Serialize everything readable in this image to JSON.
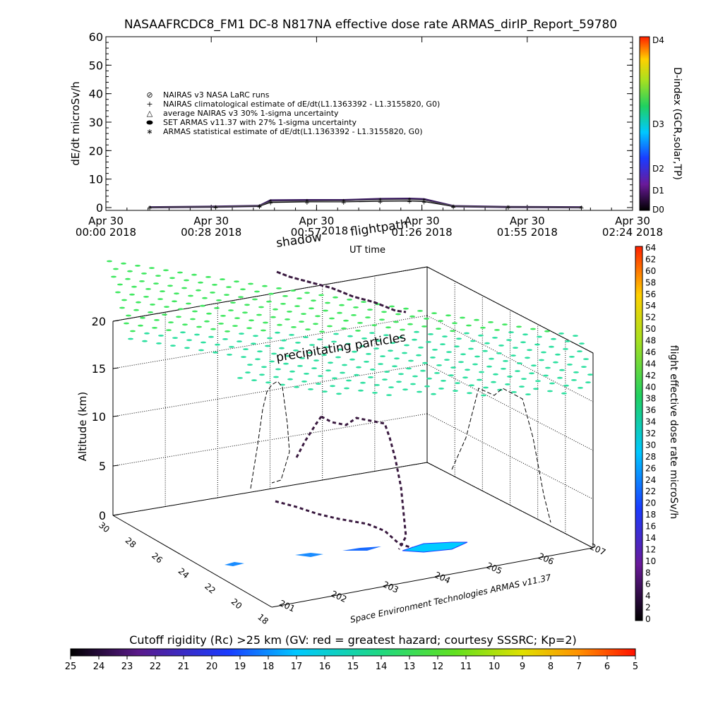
{
  "title": "NASAAFRCDC8_FM1 DC-8   N817NA effective dose rate ARMAS_dirIP_Report_59780",
  "top_chart": {
    "ylabel": "dE/dt microSv/h",
    "xlabel": "UT time",
    "yticks": [
      "0",
      "10",
      "20",
      "30",
      "40",
      "50",
      "60"
    ],
    "xticks": [
      {
        "l1": "Apr 30",
        "l2": "00:00 2018"
      },
      {
        "l1": "Apr 30",
        "l2": "00:28 2018"
      },
      {
        "l1": "Apr 30",
        "l2": "00:57 2018"
      },
      {
        "l1": "Apr 30",
        "l2": "01:26 2018"
      },
      {
        "l1": "Apr 30",
        "l2": "01:55 2018"
      },
      {
        "l1": "Apr 30",
        "l2": "02:24 2018"
      }
    ],
    "legend": [
      {
        "symbol": "⊘",
        "text": "NAIRAS v3 NASA LaRC runs"
      },
      {
        "symbol": "+",
        "text": "NAIRAS climatological estimate of dE/dt(L1.1363392 - L1.3155820, G0)"
      },
      {
        "symbol": "△",
        "text": "average NAIRAS v3 30% 1-sigma uncertainty"
      },
      {
        "symbol": "⬬",
        "text": "SET ARMAS v11.37 with 27% 1-sigma uncertainty"
      },
      {
        "symbol": "∗",
        "text": "ARMAS statistical estimate of dE/dt(L1.1363392 - L1.3155820, G0)"
      }
    ],
    "dindex_label": "D-index (GCR,solar,TP)",
    "dindex_ticks": [
      "D0",
      "D1",
      "D2",
      "D3",
      "D4"
    ]
  },
  "chart_data": [
    {
      "type": "line",
      "title": "NASAAFRCDC8_FM1 DC-8   N817NA effective dose rate ARMAS_dirIP_Report_59780",
      "xlabel": "UT time",
      "ylabel": "dE/dt microSv/h",
      "x_range": [
        "00:00",
        "02:24"
      ],
      "ylim": [
        0,
        60
      ],
      "series": [
        {
          "name": "SET ARMAS v11.37 with 27% 1-sigma uncertainty",
          "x": [
            "00:12",
            "00:30",
            "00:42",
            "00:45",
            "00:55",
            "01:05",
            "01:15",
            "01:23",
            "01:27",
            "01:35",
            "01:50",
            "02:10"
          ],
          "values": [
            0.1,
            0.3,
            0.6,
            2.5,
            2.6,
            2.6,
            3.0,
            3.1,
            2.9,
            0.5,
            0.2,
            0.1
          ]
        },
        {
          "name": "NAIRAS climatological estimate of dE/dt(L1.1363392 - L1.3155820, G0)",
          "x": [
            "00:12",
            "00:30",
            "00:42",
            "00:45",
            "00:55",
            "01:05",
            "01:15",
            "01:23",
            "01:27",
            "01:35",
            "01:50",
            "02:10"
          ],
          "values": [
            0.1,
            0.2,
            0.5,
            1.8,
            2.0,
            2.0,
            2.2,
            2.3,
            2.1,
            0.4,
            0.2,
            0.1
          ]
        },
        {
          "name": "ARMAS statistical estimate of dE/dt(L1.1363392 - L1.3155820, G0)",
          "x": [
            "00:12",
            "00:30",
            "00:42",
            "00:45",
            "00:55",
            "01:05",
            "01:15",
            "01:23",
            "01:27",
            "01:35",
            "01:50",
            "02:10"
          ],
          "values": [
            0.1,
            0.3,
            0.6,
            2.2,
            2.3,
            2.4,
            2.7,
            2.8,
            2.6,
            0.5,
            0.2,
            0.1
          ]
        }
      ]
    },
    {
      "type": "scatter",
      "zlabel": "Altitude (km)",
      "zlim": [
        0,
        20
      ],
      "lat_ticks": [
        "18",
        "20",
        "22",
        "24",
        "26",
        "28",
        "30"
      ],
      "lon_ticks": [
        "201",
        "202",
        "203",
        "204",
        "205",
        "206",
        "207"
      ],
      "annotations": [
        "shadow",
        "flightpath",
        "precipitating particles"
      ],
      "credit": "Space Environment Technologies ARMAS v11.37"
    }
  ],
  "bottom": {
    "xlabel_partial": "UT time",
    "shadow_text": "shadow",
    "flightpath_text": "flightpath",
    "overlap_text": "2018",
    "precip_text": "precipitating particles",
    "zlabel": "Altitude (km)",
    "zticks": [
      "0",
      "5",
      "10",
      "15",
      "20"
    ],
    "lat_ticks": [
      "18",
      "20",
      "22",
      "24",
      "26",
      "28",
      "30"
    ],
    "lon_ticks": [
      "201",
      "202",
      "203",
      "204",
      "205",
      "206",
      "207"
    ],
    "credit": "Space Environment Technologies ARMAS v11.37",
    "dose_label": "flight effective dose rate microSv/h",
    "dose_ticks": [
      "0",
      "2",
      "4",
      "6",
      "8",
      "10",
      "12",
      "14",
      "16",
      "18",
      "20",
      "22",
      "24",
      "26",
      "28",
      "30",
      "32",
      "34",
      "36",
      "38",
      "40",
      "42",
      "44",
      "46",
      "48",
      "50",
      "52",
      "54",
      "56",
      "58",
      "60",
      "62",
      "64"
    ]
  },
  "cutoff": {
    "title": "Cutoff rigidity (Rc) >25 km (GV: red = greatest hazard; courtesy SSSRC; Kp=2)",
    "ticks": [
      "25",
      "24",
      "23",
      "22",
      "21",
      "20",
      "19",
      "18",
      "17",
      "16",
      "15",
      "14",
      "13",
      "12",
      "11",
      "10",
      "9",
      "8",
      "7",
      "6",
      "5"
    ]
  },
  "colors": {
    "precip": "#2ee0a0",
    "precip_light": "#40e860",
    "dose_low": "#000000",
    "rigidity_patch": "#00ccff",
    "track": "#3a1a40"
  }
}
